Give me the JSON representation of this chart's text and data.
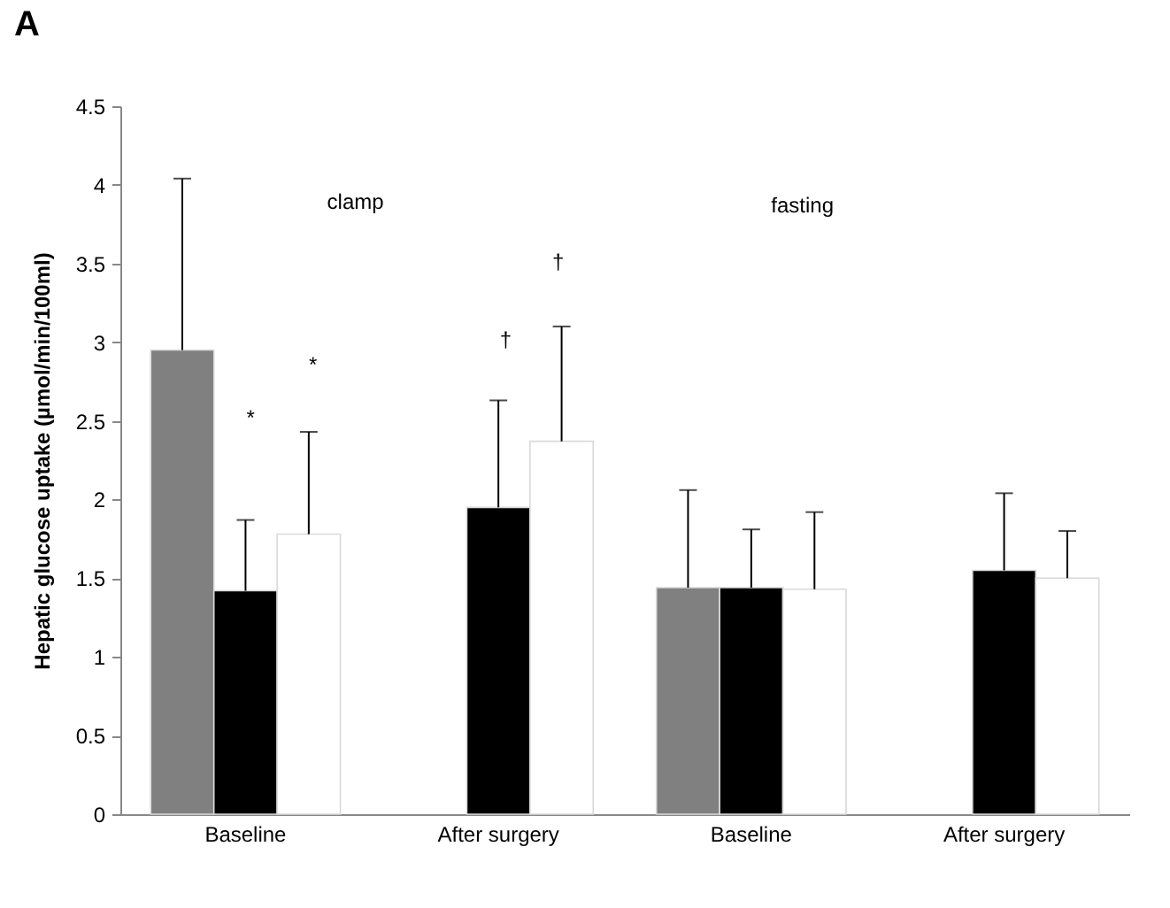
{
  "chart_data": {
    "type": "bar",
    "title": "A",
    "ylabel": "Hepatic glucose uptake (µmol/min/100ml)",
    "categories": [
      "Baseline",
      "After surgery",
      "Baseline",
      "After surgery"
    ],
    "series": [
      {
        "color": "#808080",
        "values": [
          2.95,
          null,
          1.44,
          null
        ],
        "errors": [
          [
            2.95,
            4.04
          ],
          null,
          [
            1.44,
            2.06
          ],
          null
        ]
      },
      {
        "color": "#000000",
        "values": [
          1.42,
          1.95,
          1.44,
          1.55
        ],
        "errors": [
          [
            1.42,
            1.87
          ],
          [
            1.95,
            2.63
          ],
          [
            1.44,
            1.81
          ],
          [
            1.55,
            2.04
          ]
        ]
      },
      {
        "color": "#ffffff",
        "values": [
          1.78,
          2.37,
          1.43,
          1.5
        ],
        "errors": [
          [
            1.78,
            2.43
          ],
          [
            2.37,
            3.1
          ],
          [
            1.43,
            1.92
          ],
          [
            1.5,
            1.8
          ]
        ]
      }
    ],
    "ylim": [
      0,
      4.5
    ],
    "yticks": [
      0,
      0.5,
      1,
      1.5,
      2,
      2.5,
      3,
      3.5,
      4,
      4.5
    ],
    "grid": false,
    "legend": false,
    "annotations": [
      "clamp",
      "fasting",
      "*",
      "*",
      "†",
      "†"
    ]
  }
}
